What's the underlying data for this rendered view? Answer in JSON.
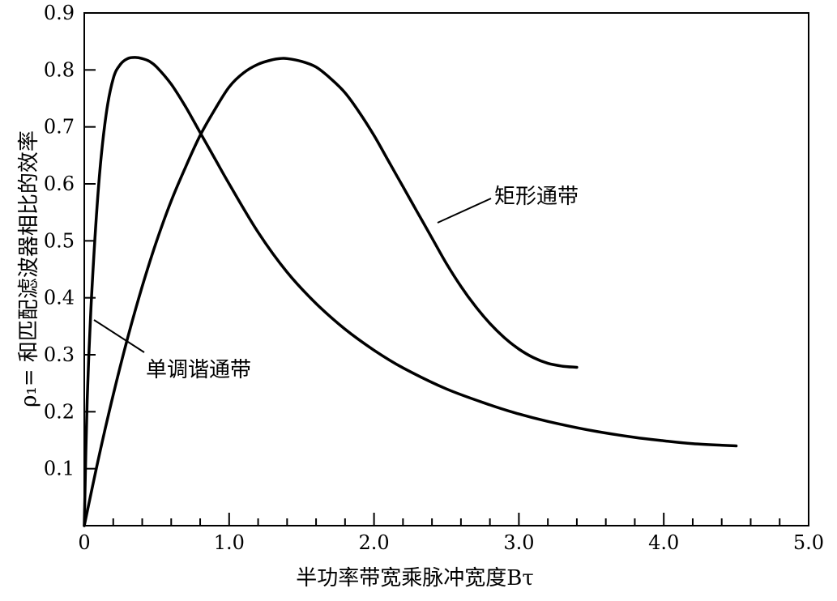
{
  "chart_data": {
    "type": "line",
    "xlabel": "半功率带宽乘脉冲宽度Bτ",
    "ylabel": "ρ₁= 和匹配滤波器相比的效率",
    "xlim": [
      0,
      5.0
    ],
    "ylim": [
      0,
      0.9
    ],
    "x_ticks": [
      "0",
      "1.0",
      "2.0",
      "3.0",
      "4.0",
      "5.0"
    ],
    "y_ticks": [
      "0.1",
      "0.2",
      "0.3",
      "0.4",
      "0.5",
      "0.6",
      "0.7",
      "0.8",
      "0.9"
    ],
    "x_minor_step": 0.2,
    "series": [
      {
        "name": "单调谐通带",
        "x": [
          0.0,
          0.02,
          0.05,
          0.1,
          0.15,
          0.2,
          0.25,
          0.3,
          0.35,
          0.4,
          0.45,
          0.5,
          0.6,
          0.7,
          0.8,
          0.9,
          1.0,
          1.2,
          1.4,
          1.6,
          1.8,
          2.0,
          2.2,
          2.5,
          2.8,
          3.0,
          3.2,
          3.5,
          3.8,
          4.0,
          4.2,
          4.5
        ],
        "y": [
          0.0,
          0.22,
          0.4,
          0.6,
          0.72,
          0.785,
          0.81,
          0.82,
          0.822,
          0.82,
          0.815,
          0.805,
          0.775,
          0.735,
          0.69,
          0.645,
          0.6,
          0.515,
          0.445,
          0.39,
          0.345,
          0.308,
          0.277,
          0.24,
          0.212,
          0.196,
          0.183,
          0.167,
          0.155,
          0.149,
          0.144,
          0.14
        ]
      },
      {
        "name": "矩形通带",
        "x": [
          0.0,
          0.1,
          0.2,
          0.3,
          0.4,
          0.5,
          0.6,
          0.7,
          0.8,
          0.9,
          1.0,
          1.1,
          1.2,
          1.3,
          1.35,
          1.4,
          1.5,
          1.6,
          1.7,
          1.8,
          1.9,
          2.0,
          2.1,
          2.2,
          2.3,
          2.4,
          2.5,
          2.6,
          2.7,
          2.8,
          2.9,
          3.0,
          3.1,
          3.2,
          3.3,
          3.4
        ],
        "y": [
          0.0,
          0.12,
          0.23,
          0.33,
          0.42,
          0.5,
          0.57,
          0.63,
          0.685,
          0.73,
          0.77,
          0.795,
          0.81,
          0.818,
          0.82,
          0.82,
          0.815,
          0.805,
          0.785,
          0.76,
          0.725,
          0.685,
          0.64,
          0.595,
          0.55,
          0.505,
          0.46,
          0.42,
          0.385,
          0.355,
          0.33,
          0.31,
          0.295,
          0.285,
          0.28,
          0.278
        ]
      }
    ],
    "annotations": [
      {
        "text": "矩形通带",
        "series": "矩形通带"
      },
      {
        "text": "单调谐通带",
        "series": "单调谐通带"
      }
    ]
  }
}
